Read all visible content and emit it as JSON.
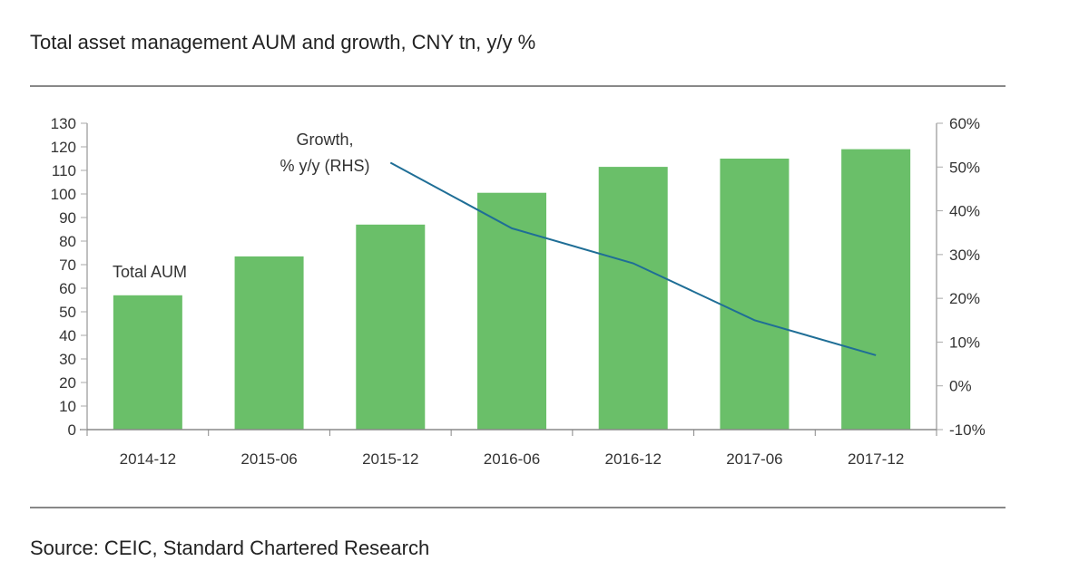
{
  "title": "Total asset management AUM and growth, CNY tn, y/y %",
  "source": "Source: CEIC, Standard Chartered Research",
  "chart_data": {
    "type": "bar",
    "categories": [
      "2014-12",
      "2015-06",
      "2015-12",
      "2016-06",
      "2016-12",
      "2017-06",
      "2017-12"
    ],
    "series": [
      {
        "name": "Total AUM",
        "type": "bar",
        "axis": "left",
        "color": "#6abf69",
        "values": [
          57,
          73.5,
          87,
          100.5,
          111.5,
          115,
          119
        ]
      },
      {
        "name": "Growth, % y/y (RHS)",
        "type": "line",
        "axis": "right",
        "color": "#1f6e96",
        "values": [
          null,
          null,
          51,
          36,
          28,
          15,
          7
        ]
      }
    ],
    "ylim_left": [
      0,
      130
    ],
    "yticks_left": [
      "0",
      "10",
      "20",
      "30",
      "40",
      "50",
      "60",
      "70",
      "80",
      "90",
      "100",
      "110",
      "120",
      "130"
    ],
    "ylim_right": [
      -10,
      60
    ],
    "yticks_right": [
      "-10%",
      "0%",
      "10%",
      "20%",
      "30%",
      "40%",
      "50%",
      "60%"
    ],
    "annotations": [
      "Total AUM",
      "Growth,",
      "% y/y (RHS)"
    ],
    "grid": false,
    "legend": "none"
  }
}
